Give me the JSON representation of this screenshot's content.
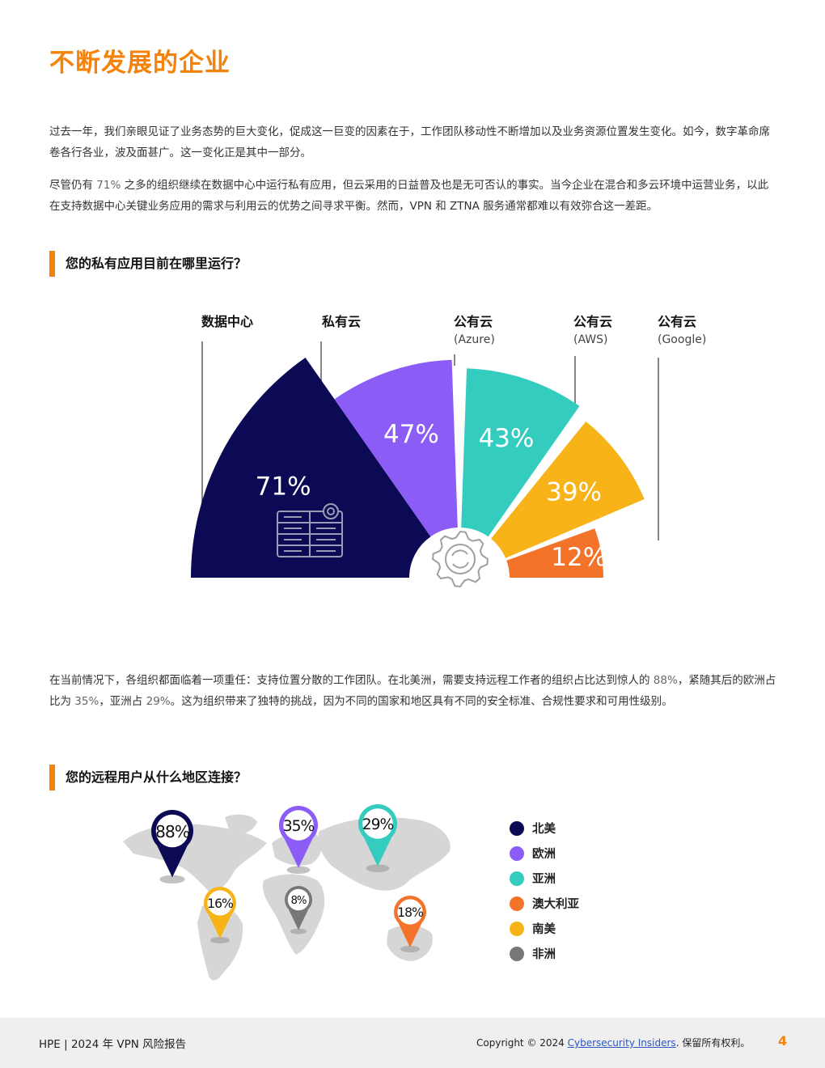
{
  "title": "不断发展的企业",
  "intro": {
    "p1": "过去一年，我们亲眼见证了业务态势的巨大变化，促成这一巨变的因素在于，工作团队移动性不断增加以及业务资源位置发生变化。如今，数字革命席卷各行各业，波及面甚广。这一变化正是其中一部分。",
    "p2_a": "尽管仍有 ",
    "p2_hl": "71%",
    "p2_b": " 之多的组织继续在数据中心中运行私有应用，但云采用的日益普及也是无可否认的事实。当今企业在混合和多云环境中运营业务，以此在支持数据中心关键业务应用的需求与利用云的优势之间寻求平衡。然而，VPN 和 ZTNA 服务通常都难以有效弥合这一差距。"
  },
  "section1": {
    "title": "您的私有应用目前在哪里运行？",
    "categories": [
      {
        "name": "数据中心",
        "sub": ""
      },
      {
        "name": "私有云",
        "sub": ""
      },
      {
        "name": "公有云",
        "sub": "(Azure)"
      },
      {
        "name": "公有云",
        "sub": "(AWS)"
      },
      {
        "name": "公有云",
        "sub": "(Google)"
      }
    ]
  },
  "chart_data": [
    {
      "type": "pie",
      "title": "您的私有应用目前在哪里运行？",
      "categories": [
        "数据中心",
        "私有云",
        "公有云 (Azure)",
        "公有云 (AWS)",
        "公有云 (Google)"
      ],
      "values": [
        71,
        47,
        43,
        39,
        12
      ],
      "labels": [
        "71%",
        "47%",
        "43%",
        "39%",
        "12%"
      ],
      "colors": [
        "#0c0a55",
        "#8b5cf6",
        "#35ccc0",
        "#f7b318",
        "#f4732a"
      ]
    },
    {
      "type": "map",
      "title": "您的远程用户从什么地区连接？",
      "categories": [
        "北美",
        "欧洲",
        "亚洲",
        "澳大利亚",
        "南美",
        "非洲"
      ],
      "values": [
        88,
        35,
        29,
        18,
        16,
        8
      ],
      "labels": [
        "88%",
        "35%",
        "29%",
        "18%",
        "16%",
        "8%"
      ],
      "colors": [
        "#0c0a55",
        "#8b5cf6",
        "#35ccc0",
        "#f4732a",
        "#f7b318",
        "#777777"
      ]
    }
  ],
  "para2": {
    "a": "在当前情况下，各组织都面临着一项重任：支持位置分散的工作团队。在北美洲，需要支持远程工作者的组织占比达到惊人的 ",
    "v1": "88%",
    "b": "，紧随其后的欧洲占比为 ",
    "v2": "35%",
    "c": "，亚洲占 ",
    "v3": "29%",
    "d": "。这为组织带来了独特的挑战，因为不同的国家和地区具有不同的安全标准、合规性要求和可用性级别。"
  },
  "section2": {
    "title": "您的远程用户从什么地区连接？"
  },
  "legend": [
    {
      "label": "北美",
      "color": "#0c0a55"
    },
    {
      "label": "欧洲",
      "color": "#8b5cf6"
    },
    {
      "label": "亚洲",
      "color": "#35ccc0"
    },
    {
      "label": "澳大利亚",
      "color": "#f4732a"
    },
    {
      "label": "南美",
      "color": "#f7b318"
    },
    {
      "label": "非洲",
      "color": "#777777"
    }
  ],
  "footer": {
    "left": "HPE | 2024 年 VPN 风险报告",
    "copyright": "Copyright © 2024 ",
    "link": "Cybersecurity Insiders",
    "rights": ". 保留所有权利。",
    "page": "4"
  },
  "icons": {
    "server": "server-rack-icon",
    "gear": "gear-sync-icon"
  }
}
